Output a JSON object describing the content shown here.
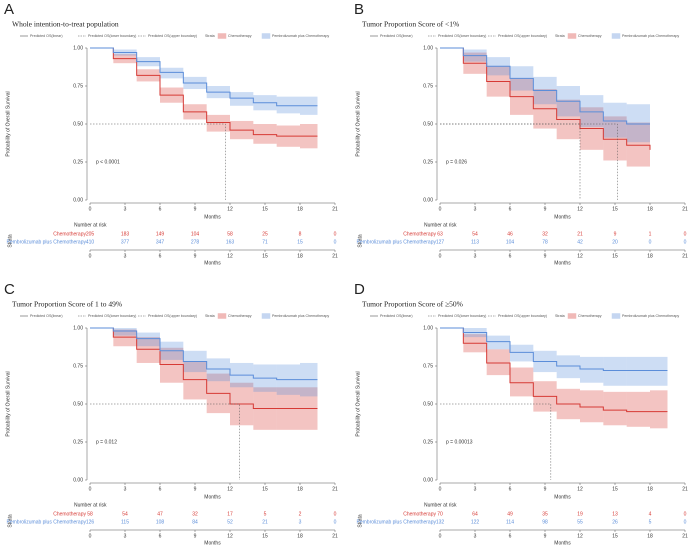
{
  "chart_data": [
    {
      "type": "survival",
      "panel_label": "A",
      "title": "Whole intention-to-treat population",
      "legend_items": [
        "Predicted OS(linear)",
        "Predicted OS(lower boundary)",
        "Predicted OS(upper boundary)"
      ],
      "legend_title": "Strata",
      "ylabel": "Probability of Overall Survival",
      "xlabel": "Months",
      "xlim": [
        0,
        21
      ],
      "xticks": [
        0,
        3,
        6,
        9,
        12,
        15,
        18,
        21
      ],
      "ylim": [
        0,
        1
      ],
      "yticks": [
        {
          "value": 0,
          "label": "0.00"
        },
        {
          "value": 0.25,
          "label": "0.25"
        },
        {
          "value": 0.5,
          "label": "0.50"
        },
        {
          "value": 0.75,
          "label": "0.75"
        },
        {
          "value": 1,
          "label": "1.00"
        }
      ],
      "pvalue": "p < 0.0001",
      "medians": [
        11.6
      ],
      "series": [
        {
          "name": "Chemotherapy",
          "color": "#d63a35",
          "x": [
            0,
            2,
            4,
            6,
            8,
            10,
            12,
            14,
            16,
            18,
            19.5
          ],
          "values": [
            1,
            0.93,
            0.82,
            0.69,
            0.58,
            0.51,
            0.46,
            0.43,
            0.42,
            0.42,
            0.42
          ],
          "lower": [
            1,
            0.9,
            0.78,
            0.64,
            0.53,
            0.45,
            0.4,
            0.37,
            0.35,
            0.34,
            0.34
          ],
          "upper": [
            1,
            0.96,
            0.86,
            0.74,
            0.63,
            0.56,
            0.52,
            0.5,
            0.49,
            0.5,
            0.5
          ],
          "at_risk": [
            205,
            183,
            149,
            104,
            58,
            25,
            8,
            0
          ]
        },
        {
          "name": "Pembrolizumab plus Chemotherapy",
          "color": "#5b8dd9",
          "x": [
            0,
            2,
            4,
            6,
            8,
            10,
            12,
            14,
            16,
            18,
            19.5
          ],
          "values": [
            1,
            0.97,
            0.91,
            0.84,
            0.77,
            0.71,
            0.67,
            0.64,
            0.62,
            0.62,
            0.62
          ],
          "lower": [
            1,
            0.95,
            0.88,
            0.8,
            0.73,
            0.67,
            0.62,
            0.59,
            0.57,
            0.56,
            0.56
          ],
          "upper": [
            1,
            0.99,
            0.94,
            0.87,
            0.81,
            0.75,
            0.71,
            0.69,
            0.68,
            0.68,
            0.68
          ],
          "at_risk": [
            410,
            377,
            347,
            278,
            163,
            71,
            15,
            0
          ]
        }
      ],
      "risk_title": "Number at risk",
      "risk_strata_label": "Strata"
    },
    {
      "type": "survival",
      "panel_label": "B",
      "title": "Tumor Proportion Score of <1%",
      "legend_items": [
        "Predicted OS(linear)",
        "Predicted OS(lower boundary)",
        "Predicted OS(upper boundary)"
      ],
      "legend_title": "Strata",
      "ylabel": "Probability of Overall Survival",
      "xlabel": "Months",
      "xlim": [
        0,
        21
      ],
      "xticks": [
        0,
        3,
        6,
        9,
        12,
        15,
        18,
        21
      ],
      "ylim": [
        0,
        1
      ],
      "yticks": [
        {
          "value": 0,
          "label": "0.00"
        },
        {
          "value": 0.25,
          "label": "0.25"
        },
        {
          "value": 0.5,
          "label": "0.50"
        },
        {
          "value": 0.75,
          "label": "0.75"
        },
        {
          "value": 1,
          "label": "1.00"
        }
      ],
      "pvalue": "p = 0.026",
      "medians": [
        12,
        15.2
      ],
      "series": [
        {
          "name": "Chemotherapy",
          "color": "#d63a35",
          "x": [
            0,
            2,
            4,
            6,
            8,
            10,
            12,
            14,
            16,
            18
          ],
          "values": [
            1,
            0.9,
            0.78,
            0.68,
            0.6,
            0.53,
            0.47,
            0.4,
            0.36,
            0.33
          ],
          "lower": [
            1,
            0.83,
            0.68,
            0.56,
            0.47,
            0.4,
            0.33,
            0.26,
            0.22,
            0.18
          ],
          "upper": [
            1,
            0.97,
            0.88,
            0.8,
            0.73,
            0.66,
            0.61,
            0.55,
            0.51,
            0.48
          ],
          "at_risk": [
            63,
            54,
            46,
            32,
            21,
            9,
            1,
            0
          ]
        },
        {
          "name": "Pembrolizumab plus Chemotherapy",
          "color": "#5b8dd9",
          "x": [
            0,
            2,
            4,
            6,
            8,
            10,
            12,
            14,
            16,
            18
          ],
          "values": [
            1,
            0.95,
            0.88,
            0.8,
            0.72,
            0.65,
            0.58,
            0.52,
            0.5,
            0.5
          ],
          "lower": [
            1,
            0.91,
            0.82,
            0.72,
            0.63,
            0.55,
            0.48,
            0.41,
            0.38,
            0.37
          ],
          "upper": [
            1,
            0.99,
            0.94,
            0.88,
            0.81,
            0.75,
            0.69,
            0.64,
            0.63,
            0.64
          ],
          "at_risk": [
            127,
            113,
            104,
            78,
            42,
            20,
            0,
            0
          ]
        }
      ],
      "risk_title": "Number at risk",
      "risk_strata_label": "Strata"
    },
    {
      "type": "survival",
      "panel_label": "C",
      "title": "Tumor Proportion Score of 1 to 49%",
      "legend_items": [
        "Predicted OS(linear)",
        "Predicted OS(lower boundary)",
        "Predicted OS(upper boundary)"
      ],
      "legend_title": "Strata",
      "ylabel": "Probability of Overall Survival",
      "xlabel": "Months",
      "xlim": [
        0,
        21
      ],
      "xticks": [
        0,
        3,
        6,
        9,
        12,
        15,
        18,
        21
      ],
      "ylim": [
        0,
        1
      ],
      "yticks": [
        {
          "value": 0,
          "label": "0.00"
        },
        {
          "value": 0.25,
          "label": "0.25"
        },
        {
          "value": 0.5,
          "label": "0.50"
        },
        {
          "value": 0.75,
          "label": "0.75"
        },
        {
          "value": 1,
          "label": "1.00"
        }
      ],
      "pvalue": "p = 0.012",
      "medians": [
        12.8
      ],
      "series": [
        {
          "name": "Chemotherapy",
          "color": "#d63a35",
          "x": [
            0,
            2,
            4,
            6,
            8,
            10,
            12,
            14,
            16,
            18,
            19.5
          ],
          "values": [
            1,
            0.94,
            0.86,
            0.76,
            0.66,
            0.57,
            0.5,
            0.47,
            0.47,
            0.47,
            0.47
          ],
          "lower": [
            1,
            0.88,
            0.77,
            0.64,
            0.53,
            0.44,
            0.36,
            0.33,
            0.33,
            0.33,
            0.33
          ],
          "upper": [
            1,
            0.99,
            0.94,
            0.87,
            0.78,
            0.7,
            0.64,
            0.61,
            0.61,
            0.61,
            0.61
          ],
          "at_risk": [
            58,
            54,
            47,
            32,
            17,
            5,
            2,
            0
          ]
        },
        {
          "name": "Pembrolizumab plus Chemotherapy",
          "color": "#5b8dd9",
          "x": [
            0,
            2,
            4,
            6,
            8,
            10,
            12,
            14,
            16,
            18,
            19.5
          ],
          "values": [
            1,
            0.98,
            0.93,
            0.85,
            0.78,
            0.73,
            0.69,
            0.67,
            0.66,
            0.66,
            0.66
          ],
          "lower": [
            1,
            0.95,
            0.88,
            0.79,
            0.71,
            0.65,
            0.61,
            0.58,
            0.56,
            0.55,
            0.55
          ],
          "upper": [
            1,
            1,
            0.97,
            0.91,
            0.85,
            0.8,
            0.77,
            0.76,
            0.76,
            0.77,
            0.77
          ],
          "at_risk": [
            126,
            115,
            108,
            84,
            52,
            21,
            3,
            0
          ]
        }
      ],
      "risk_title": "Number at risk",
      "risk_strata_label": "Strata"
    },
    {
      "type": "survival",
      "panel_label": "D",
      "title": "Tumor Proportion Score of ≥50%",
      "legend_items": [
        "Predicted OS(linear)",
        "Predicted OS(lower boundary)",
        "Predicted OS(upper boundary)"
      ],
      "legend_title": "Strata",
      "ylabel": "Probability of Overall Survival",
      "xlabel": "Months",
      "xlim": [
        0,
        21
      ],
      "xticks": [
        0,
        3,
        6,
        9,
        12,
        15,
        18,
        21
      ],
      "ylim": [
        0,
        1
      ],
      "yticks": [
        {
          "value": 0,
          "label": "0.00"
        },
        {
          "value": 0.25,
          "label": "0.25"
        },
        {
          "value": 0.5,
          "label": "0.50"
        },
        {
          "value": 0.75,
          "label": "0.75"
        },
        {
          "value": 1,
          "label": "1.00"
        }
      ],
      "pvalue": "p = 0.00013",
      "medians": [
        9.5
      ],
      "series": [
        {
          "name": "Chemotherapy",
          "color": "#d63a35",
          "x": [
            0,
            2,
            4,
            6,
            8,
            10,
            12,
            14,
            16,
            18,
            19.5
          ],
          "values": [
            1,
            0.9,
            0.77,
            0.64,
            0.55,
            0.5,
            0.48,
            0.46,
            0.45,
            0.45,
            0.45
          ],
          "lower": [
            1,
            0.84,
            0.69,
            0.55,
            0.45,
            0.4,
            0.38,
            0.36,
            0.35,
            0.34,
            0.34
          ],
          "upper": [
            1,
            0.96,
            0.86,
            0.74,
            0.65,
            0.6,
            0.59,
            0.58,
            0.58,
            0.59,
            0.59
          ],
          "at_risk": [
            70,
            64,
            49,
            35,
            19,
            13,
            4,
            0
          ]
        },
        {
          "name": "Pembrolizumab plus Chemotherapy",
          "color": "#5b8dd9",
          "x": [
            0,
            2,
            4,
            6,
            8,
            10,
            12,
            14,
            16,
            18,
            19.5
          ],
          "values": [
            1,
            0.97,
            0.91,
            0.84,
            0.78,
            0.75,
            0.73,
            0.72,
            0.72,
            0.72,
            0.72
          ],
          "lower": [
            1,
            0.94,
            0.86,
            0.78,
            0.71,
            0.67,
            0.64,
            0.62,
            0.62,
            0.62,
            0.62
          ],
          "upper": [
            1,
            1,
            0.95,
            0.89,
            0.85,
            0.82,
            0.81,
            0.81,
            0.81,
            0.81,
            0.81
          ],
          "at_risk": [
            132,
            122,
            114,
            98,
            55,
            26,
            5,
            0
          ]
        }
      ],
      "risk_title": "Number at risk",
      "risk_strata_label": "Strata"
    }
  ]
}
